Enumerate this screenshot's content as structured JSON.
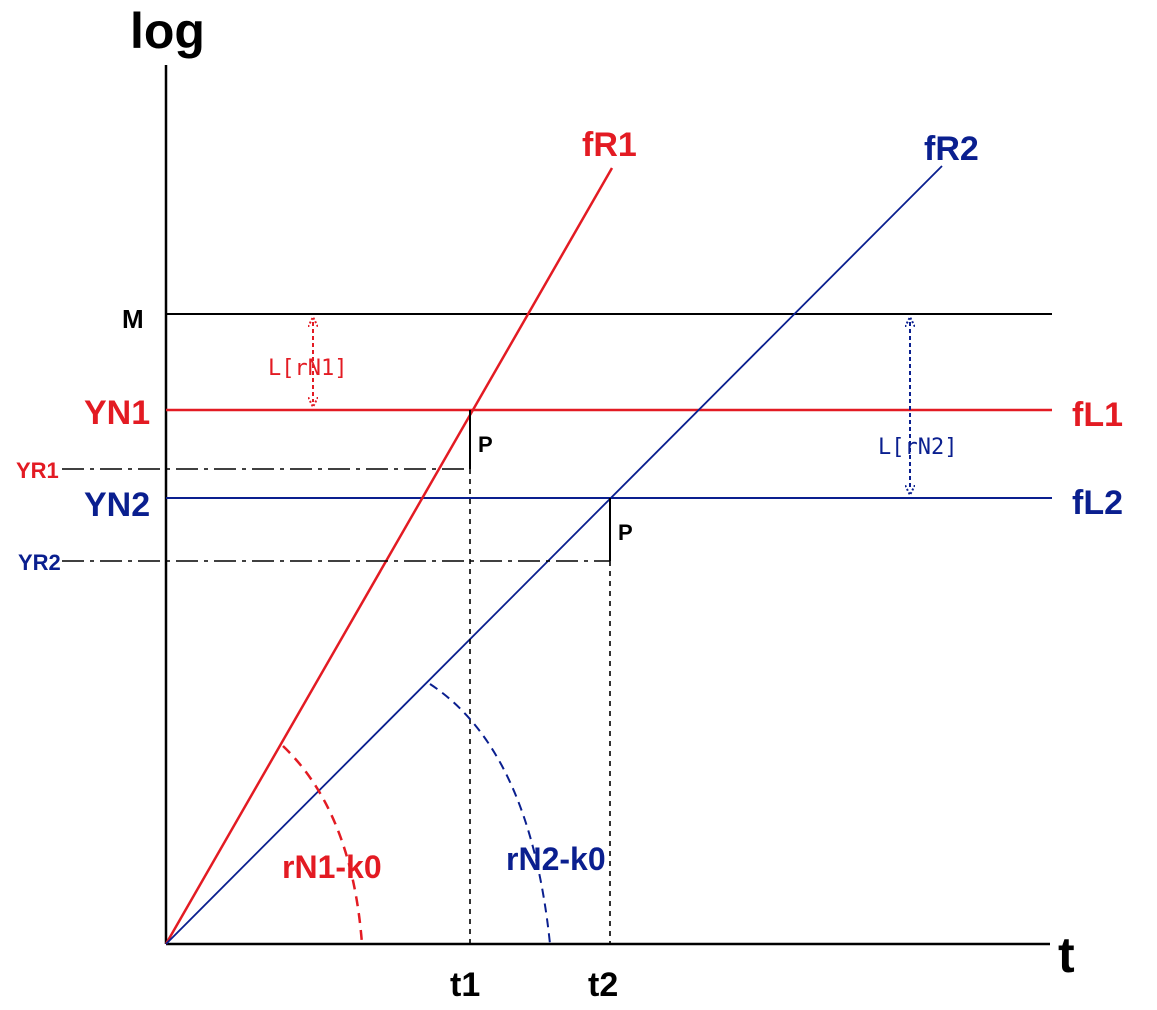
{
  "axes": {
    "y_label": "log",
    "x_label": "t"
  },
  "lines": {
    "fR1": "fR1",
    "fR2": "fR2",
    "fL1": "fL1",
    "fL2": "fL2"
  },
  "levels": {
    "M": "M",
    "YN1": "YN1",
    "YR1": "YR1",
    "YN2": "YN2",
    "YR2": "YR2"
  },
  "ticks": {
    "t1": "t1",
    "t2": "t2"
  },
  "points": {
    "p1": "P",
    "p2": "P"
  },
  "gaps": {
    "gap1": "L[rN1]",
    "gap2": "L[rN2]"
  },
  "curves": {
    "curve1": "rN1-k0",
    "curve2": "rN2-k0"
  },
  "colors": {
    "red": "#e31b23",
    "blue": "#0a1f8f",
    "black": "#000000"
  }
}
